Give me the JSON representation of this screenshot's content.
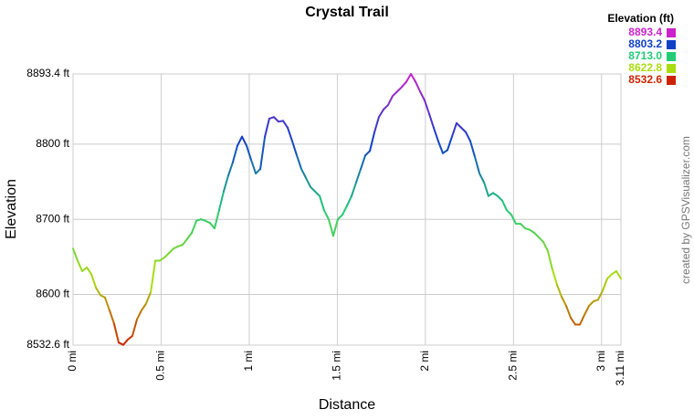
{
  "chart_data": {
    "type": "line",
    "title": "Crystal Trail",
    "x_label": "Distance",
    "y_label": "Elevation",
    "credit": "created by GPSVisualizer.com",
    "legend_title": "Elevation (ft)",
    "color_scale": [
      {
        "value": 8893.4,
        "label": "8893.4",
        "color": "#cc22cc"
      },
      {
        "value": 8803.2,
        "label": "8803.2",
        "color": "#1040c8"
      },
      {
        "value": 8713.0,
        "label": "8713.0",
        "color": "#22cc77"
      },
      {
        "value": 8622.8,
        "label": "8622.8",
        "color": "#aadd11"
      },
      {
        "value": 8532.6,
        "label": "8532.6",
        "color": "#cc2200"
      }
    ],
    "grid": true,
    "xlim": [
      0,
      3.11
    ],
    "ylim": [
      8532.6,
      8893.4
    ],
    "xticks": [
      {
        "value": 0,
        "label": "0 mi"
      },
      {
        "value": 0.5,
        "label": "0.5 mi"
      },
      {
        "value": 1,
        "label": "1 mi"
      },
      {
        "value": 1.5,
        "label": "1.5 mi"
      },
      {
        "value": 2,
        "label": "2 mi"
      },
      {
        "value": 2.5,
        "label": "2.5 mi"
      },
      {
        "value": 3,
        "label": "3 mi"
      },
      {
        "value": 3.11,
        "label": "3.11 mi"
      }
    ],
    "yticks": [
      {
        "value": 8532.6,
        "label": "8532.6 ft"
      },
      {
        "value": 8600,
        "label": "8600 ft"
      },
      {
        "value": 8700,
        "label": "8700 ft"
      },
      {
        "value": 8800,
        "label": "8800 ft"
      },
      {
        "value": 8893.4,
        "label": "8893.4 ft"
      }
    ],
    "x": [
      0,
      0.026,
      0.052,
      0.078,
      0.104,
      0.13,
      0.156,
      0.181,
      0.207,
      0.233,
      0.259,
      0.285,
      0.311,
      0.337,
      0.363,
      0.389,
      0.415,
      0.441,
      0.467,
      0.492,
      0.518,
      0.544,
      0.57,
      0.596,
      0.622,
      0.648,
      0.674,
      0.7,
      0.726,
      0.752,
      0.778,
      0.803,
      0.829,
      0.855,
      0.881,
      0.907,
      0.933,
      0.959,
      0.985,
      1.011,
      1.037,
      1.063,
      1.089,
      1.114,
      1.14,
      1.166,
      1.192,
      1.218,
      1.244,
      1.27,
      1.296,
      1.322,
      1.348,
      1.374,
      1.4,
      1.425,
      1.451,
      1.477,
      1.503,
      1.529,
      1.555,
      1.581,
      1.607,
      1.633,
      1.659,
      1.685,
      1.711,
      1.736,
      1.762,
      1.788,
      1.814,
      1.84,
      1.866,
      1.892,
      1.918,
      1.944,
      1.97,
      1.996,
      2.022,
      2.047,
      2.073,
      2.099,
      2.125,
      2.151,
      2.177,
      2.203,
      2.229,
      2.255,
      2.281,
      2.307,
      2.333,
      2.358,
      2.384,
      2.41,
      2.436,
      2.462,
      2.488,
      2.514,
      2.54,
      2.566,
      2.592,
      2.618,
      2.644,
      2.669,
      2.695,
      2.721,
      2.747,
      2.773,
      2.799,
      2.825,
      2.851,
      2.877,
      2.903,
      2.929,
      2.955,
      2.98,
      3.006,
      3.032,
      3.058,
      3.084,
      3.11
    ],
    "values": [
      8661,
      8645,
      8631,
      8636,
      8627,
      8609,
      8599,
      8596,
      8579,
      8561,
      8536,
      8533,
      8540,
      8545,
      8567,
      8579,
      8588,
      8603,
      8645,
      8645,
      8649,
      8655,
      8661,
      8664,
      8666,
      8674,
      8682,
      8698,
      8700,
      8698,
      8695,
      8688,
      8712,
      8737,
      8758,
      8776,
      8798,
      8810,
      8798,
      8779,
      8761,
      8767,
      8810,
      8834,
      8836,
      8830,
      8831,
      8822,
      8804,
      8785,
      8767,
      8755,
      8743,
      8737,
      8731,
      8712,
      8700,
      8678,
      8700,
      8706,
      8718,
      8731,
      8749,
      8767,
      8785,
      8791,
      8816,
      8836,
      8846,
      8852,
      8864,
      8870,
      8876,
      8883,
      8893.4,
      8883,
      8870,
      8858,
      8840,
      8822,
      8804,
      8788,
      8792,
      8810,
      8828,
      8822,
      8816,
      8804,
      8783,
      8761,
      8749,
      8731,
      8735,
      8731,
      8725,
      8712,
      8706,
      8694,
      8694,
      8688,
      8686,
      8682,
      8676,
      8670,
      8658,
      8633,
      8613,
      8597,
      8585,
      8569,
      8560,
      8560,
      8573,
      8585,
      8591,
      8593,
      8605,
      8621,
      8627,
      8631,
      8621
    ]
  }
}
